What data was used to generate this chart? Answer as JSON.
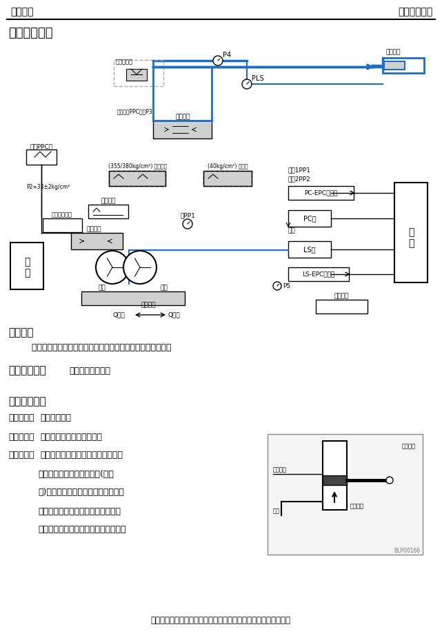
{
  "header_left": "液压系统",
  "header_right": "液压工作回路",
  "title": "铲斗液压回路",
  "section1_title": "一、概述",
  "section1_body": "    铲斗液压回路和动臂回路基本一样，请参考动臂回路的解说。",
  "section2_title": "二、工作原理",
  "section2_note": "（参考动臂回路）",
  "section3_title": "三、故障诊断",
  "fault_lines": [
    "故障现象：铲斗挖掘无力",
    "故障分析：经检查怀疑铲斗油缸内漏。",
    "处理方法：打开铲斗油缸非常费时，现介绍一个",
    "        简单的判断油缸内漏的方法(看右",
    "        图)，将油缸移动到右端处，拆下末端",
    "        油管后加力，观察分开处漏油情况，",
    "        若无漏油，则无内漏，否则油缸内漏。"
  ],
  "footer": "公众号：智造大观，专注于工程机械制造行业相关理论知识分享。",
  "bg_color": "#ffffff",
  "text_color": "#000000",
  "header_line_color": "#000000"
}
